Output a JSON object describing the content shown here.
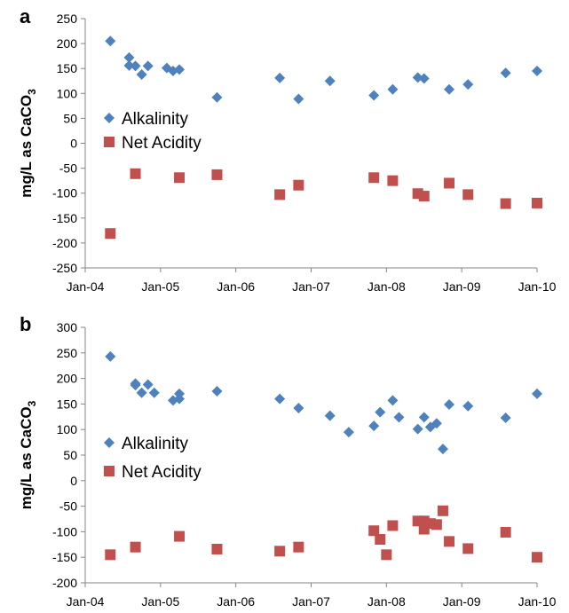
{
  "chart_data": [
    {
      "panel_label": "a",
      "type": "scatter",
      "ylabel_main": "mg/L  as CaCO",
      "ylabel_sub": "3",
      "ylim": [
        -250,
        250
      ],
      "yticks": [
        -250,
        -200,
        -150,
        -100,
        -50,
        0,
        50,
        100,
        150,
        200,
        250
      ],
      "xticks": [
        "Jan-04",
        "Jan-05",
        "Jan-06",
        "Jan-07",
        "Jan-08",
        "Jan-09",
        "Jan-10"
      ],
      "xlim": [
        "2004-01",
        "2010-01"
      ],
      "grid": false,
      "legend_position": "left",
      "series": [
        {
          "name": "Alkalinity",
          "marker": "diamond",
          "color": "#4F81BD",
          "points": [
            [
              "2004-05",
              205
            ],
            [
              "2004-08",
              172
            ],
            [
              "2004-08",
              156
            ],
            [
              "2004-09",
              155
            ],
            [
              "2004-10",
              138
            ],
            [
              "2004-11",
              155
            ],
            [
              "2005-02",
              151
            ],
            [
              "2005-03",
              145
            ],
            [
              "2005-04",
              148
            ],
            [
              "2005-10",
              92
            ],
            [
              "2006-08",
              131
            ],
            [
              "2006-11",
              89
            ],
            [
              "2007-04",
              125
            ],
            [
              "2007-11",
              96
            ],
            [
              "2008-02",
              108
            ],
            [
              "2008-06",
              132
            ],
            [
              "2008-07",
              130
            ],
            [
              "2008-11",
              108
            ],
            [
              "2009-02",
              118
            ],
            [
              "2009-08",
              141
            ],
            [
              "2010-01",
              145
            ]
          ]
        },
        {
          "name": "Net Acidity",
          "marker": "square",
          "color": "#C0504D",
          "points": [
            [
              "2004-05",
              -181
            ],
            [
              "2004-09",
              -61
            ],
            [
              "2005-04",
              -69
            ],
            [
              "2005-10",
              -63
            ],
            [
              "2006-08",
              -103
            ],
            [
              "2006-11",
              -84
            ],
            [
              "2007-11",
              -69
            ],
            [
              "2008-02",
              -75
            ],
            [
              "2008-06",
              -101
            ],
            [
              "2008-07",
              -106
            ],
            [
              "2008-11",
              -80
            ],
            [
              "2009-02",
              -103
            ],
            [
              "2009-08",
              -121
            ],
            [
              "2010-01",
              -120
            ]
          ]
        }
      ]
    },
    {
      "panel_label": "b",
      "type": "scatter",
      "ylabel_main": "mg/L  as CaCO",
      "ylabel_sub": "3",
      "ylim": [
        -200,
        300
      ],
      "yticks": [
        -200,
        -150,
        -100,
        -50,
        0,
        50,
        100,
        150,
        200,
        250,
        300
      ],
      "xticks": [
        "Jan-04",
        "Jan-05",
        "Jan-06",
        "Jan-07",
        "Jan-08",
        "Jan-09",
        "Jan-10"
      ],
      "xlim": [
        "2004-01",
        "2010-01"
      ],
      "grid": false,
      "legend_position": "left",
      "series": [
        {
          "name": "Alkalinity",
          "marker": "diamond",
          "color": "#4F81BD",
          "points": [
            [
              "2004-05",
              243
            ],
            [
              "2004-09",
              190
            ],
            [
              "2004-09",
              187
            ],
            [
              "2004-10",
              172
            ],
            [
              "2004-11",
              188
            ],
            [
              "2004-12",
              172
            ],
            [
              "2005-03",
              157
            ],
            [
              "2005-04",
              170
            ],
            [
              "2005-04",
              160
            ],
            [
              "2005-10",
              175
            ],
            [
              "2006-08",
              160
            ],
            [
              "2006-11",
              142
            ],
            [
              "2007-04",
              127
            ],
            [
              "2007-07",
              95
            ],
            [
              "2007-11",
              107
            ],
            [
              "2007-12",
              134
            ],
            [
              "2008-02",
              157
            ],
            [
              "2008-03",
              124
            ],
            [
              "2008-06",
              101
            ],
            [
              "2008-07",
              124
            ],
            [
              "2008-08",
              105
            ],
            [
              "2008-09",
              112
            ],
            [
              "2008-10",
              62
            ],
            [
              "2008-11",
              149
            ],
            [
              "2009-02",
              146
            ],
            [
              "2009-08",
              123
            ],
            [
              "2010-01",
              170
            ]
          ]
        },
        {
          "name": "Net Acidity",
          "marker": "square",
          "color": "#C0504D",
          "points": [
            [
              "2004-05",
              -145
            ],
            [
              "2004-09",
              -130
            ],
            [
              "2005-04",
              -109
            ],
            [
              "2005-10",
              -134
            ],
            [
              "2006-08",
              -138
            ],
            [
              "2006-11",
              -130
            ],
            [
              "2007-11",
              -98
            ],
            [
              "2007-12",
              -115
            ],
            [
              "2008-01",
              -145
            ],
            [
              "2008-02",
              -88
            ],
            [
              "2008-06",
              -79
            ],
            [
              "2008-07",
              -79
            ],
            [
              "2008-07",
              -95
            ],
            [
              "2008-08",
              -84
            ],
            [
              "2008-09",
              -86
            ],
            [
              "2008-10",
              -59
            ],
            [
              "2008-11",
              -119
            ],
            [
              "2009-02",
              -133
            ],
            [
              "2009-08",
              -101
            ],
            [
              "2010-01",
              -150
            ]
          ]
        }
      ]
    }
  ]
}
